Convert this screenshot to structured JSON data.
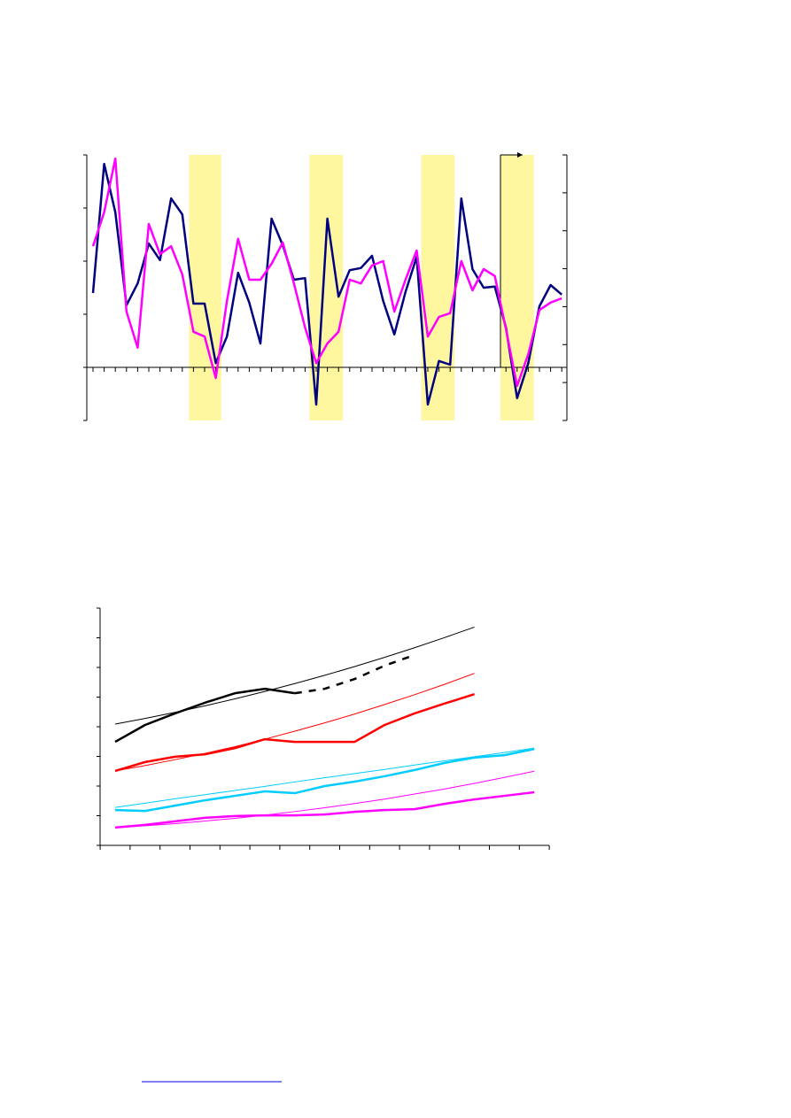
{
  "chart_data": [
    {
      "type": "line",
      "categories": [
        null,
        null,
        null,
        null,
        null,
        null,
        null,
        null,
        null,
        null,
        null,
        null,
        null,
        null,
        null,
        null,
        null,
        null,
        null,
        null,
        null,
        null,
        null,
        null,
        null,
        null,
        null,
        null,
        null,
        null,
        null,
        null,
        null,
        null,
        null,
        null,
        null,
        null,
        null,
        null,
        null,
        null,
        null
      ],
      "ylim": [
        -1,
        4
      ],
      "yticks": [
        -1,
        0,
        1,
        2,
        3,
        4
      ],
      "y2lim": [
        -2,
        5
      ],
      "y2ticks": [
        -2,
        -1,
        0,
        1,
        2,
        3,
        4,
        5
      ],
      "highlight_ranges": [
        [
          8.6,
          11.5
        ],
        [
          19.4,
          22.4
        ],
        [
          29.4,
          32.4
        ],
        [
          36.5,
          39.5
        ]
      ],
      "highlight_color": "#fff7a0",
      "series": [
        {
          "color": "#000080",
          "width": 2.5,
          "values": [
            1.4,
            3.83,
            2.92,
            1.17,
            1.58,
            2.33,
            2.02,
            3.18,
            2.88,
            1.2,
            1.2,
            0.08,
            0.58,
            1.78,
            1.22,
            0.45,
            2.8,
            2.3,
            1.65,
            1.68,
            -0.7,
            2.8,
            1.33,
            1.83,
            1.87,
            2.1,
            1.25,
            0.62,
            1.42,
            2.08,
            -0.7,
            0.12,
            0.05,
            3.18,
            1.85,
            1.5,
            1.52,
            0.75,
            -0.58,
            0.08,
            1.15,
            1.55,
            1.37
          ]
        },
        {
          "color": "#ff00ff",
          "width": 2.5,
          "values": [
            2.28,
            2.92,
            3.93,
            1.05,
            0.37,
            2.7,
            2.13,
            2.28,
            1.75,
            0.67,
            0.58,
            -0.2,
            1.25,
            2.42,
            1.65,
            1.65,
            1.95,
            2.35,
            1.58,
            0.75,
            0.08,
            0.45,
            0.67,
            1.65,
            1.58,
            1.92,
            2.0,
            1.05,
            1.65,
            2.2,
            0.58,
            0.95,
            1.02,
            2.0,
            1.45,
            1.85,
            1.72,
            0.72,
            -0.35,
            0.25,
            1.08,
            1.22,
            1.3
          ]
        }
      ]
    },
    {
      "type": "line",
      "categories": [
        null,
        null,
        null,
        null,
        null,
        null,
        null,
        null,
        null,
        null,
        null,
        null,
        null,
        null,
        null
      ],
      "ylim": [
        0,
        8
      ],
      "yticks": [
        0,
        1,
        2,
        3,
        4,
        5,
        6,
        7,
        8
      ],
      "series": [
        {
          "color": "#000000",
          "width": 1,
          "values": [
            4.09,
            4.28,
            4.485,
            4.705,
            4.94,
            5.19,
            5.455,
            5.735,
            6.03,
            6.34,
            6.665,
            7.005,
            7.36,
            null,
            null
          ]
        },
        {
          "color": "#000000",
          "width": 2.5,
          "values": [
            3.49,
            4.06,
            4.45,
            4.81,
            5.13,
            5.28,
            5.13,
            null,
            null,
            null,
            null,
            null,
            null,
            null,
            null
          ]
        },
        {
          "color": "#000000",
          "width": 2.5,
          "dashed": true,
          "values": [
            null,
            null,
            null,
            null,
            null,
            null,
            5.13,
            5.28,
            5.61,
            6.06,
            6.42,
            null,
            null,
            null,
            null
          ]
        },
        {
          "color": "#ff0000",
          "width": 1,
          "values": [
            2.51,
            2.69,
            2.89,
            3.1,
            3.33,
            3.58,
            3.85,
            4.13,
            4.43,
            4.75,
            5.08,
            5.43,
            5.8,
            null,
            null
          ]
        },
        {
          "color": "#ff0000",
          "width": 2.5,
          "values": [
            2.51,
            2.81,
            2.99,
            3.07,
            3.28,
            3.58,
            3.49,
            3.49,
            3.49,
            4.06,
            4.45,
            4.78,
            5.1,
            null,
            null
          ]
        },
        {
          "color": "#00ccff",
          "width": 1,
          "values": [
            1.28,
            1.42,
            1.57,
            1.71,
            1.85,
            1.99,
            2.14,
            2.28,
            2.42,
            2.56,
            2.71,
            2.85,
            2.99,
            3.13,
            3.28
          ]
        },
        {
          "color": "#00ccff",
          "width": 2.5,
          "values": [
            1.19,
            1.16,
            1.34,
            1.52,
            1.67,
            1.82,
            1.76,
            2.0,
            2.15,
            2.33,
            2.54,
            2.78,
            2.96,
            3.04,
            3.25
          ]
        },
        {
          "color": "#ff00ff",
          "width": 1,
          "values": [
            0.6,
            0.66,
            0.73,
            0.82,
            0.91,
            1.02,
            1.14,
            1.27,
            1.41,
            1.56,
            1.73,
            1.9,
            2.09,
            2.29,
            2.5
          ]
        },
        {
          "color": "#ff00ff",
          "width": 2.5,
          "values": [
            0.6,
            0.69,
            0.81,
            0.93,
            0.99,
            1.01,
            1.01,
            1.04,
            1.13,
            1.19,
            1.22,
            1.4,
            1.55,
            1.67,
            1.79
          ]
        }
      ]
    }
  ]
}
